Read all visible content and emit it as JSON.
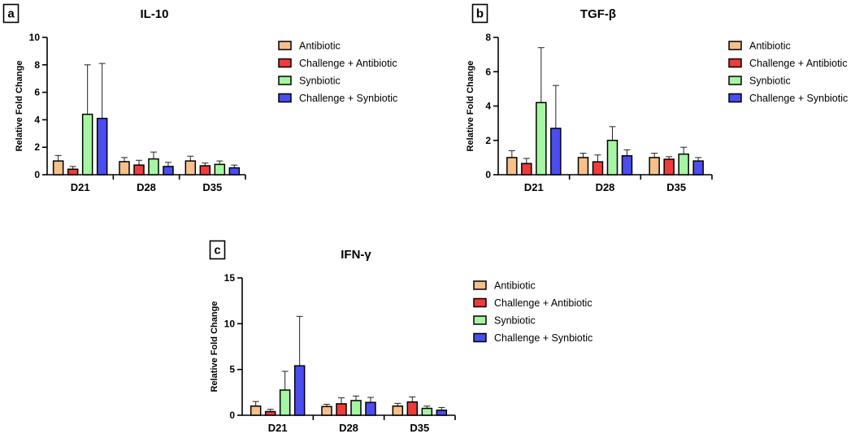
{
  "colors": {
    "Antibiotic": "#f5c08a",
    "Challenge + Antibiotic": "#ee3b3b",
    "Synbiotic": "#a6f5a2",
    "Challenge + Synbiotic": "#4b4df0"
  },
  "legend": [
    "Antibiotic",
    "Challenge + Antibiotic",
    "Synbiotic",
    "Challenge + Synbiotic"
  ],
  "chart_data": [
    {
      "type": "bar",
      "panel": "a",
      "title": "IL-10",
      "xlabel": "",
      "ylabel": "Relative Fold Change",
      "ylim": [
        0,
        10
      ],
      "yticks": [
        0,
        2,
        4,
        6,
        8,
        10
      ],
      "categories": [
        "D21",
        "D28",
        "D35"
      ],
      "series": [
        {
          "name": "Antibiotic",
          "values": [
            1.0,
            0.95,
            1.0
          ],
          "errors": [
            0.4,
            0.3,
            0.35
          ]
        },
        {
          "name": "Challenge + Antibiotic",
          "values": [
            0.4,
            0.7,
            0.65
          ],
          "errors": [
            0.2,
            0.35,
            0.2
          ]
        },
        {
          "name": "Synbiotic",
          "values": [
            4.4,
            1.15,
            0.75
          ],
          "errors": [
            3.6,
            0.5,
            0.25
          ]
        },
        {
          "name": "Challenge + Synbiotic",
          "values": [
            4.1,
            0.6,
            0.5
          ],
          "errors": [
            4.0,
            0.3,
            0.2
          ]
        }
      ]
    },
    {
      "type": "bar",
      "panel": "b",
      "title": "TGF-β",
      "xlabel": "",
      "ylabel": "Relative Fold Change",
      "ylim": [
        0,
        8
      ],
      "yticks": [
        0,
        2,
        4,
        6,
        8
      ],
      "categories": [
        "D21",
        "D28",
        "D35"
      ],
      "series": [
        {
          "name": "Antibiotic",
          "values": [
            1.0,
            1.0,
            1.0
          ],
          "errors": [
            0.4,
            0.25,
            0.25
          ]
        },
        {
          "name": "Challenge + Antibiotic",
          "values": [
            0.65,
            0.75,
            0.9
          ],
          "errors": [
            0.3,
            0.4,
            0.15
          ]
        },
        {
          "name": "Synbiotic",
          "values": [
            4.2,
            2.0,
            1.2
          ],
          "errors": [
            3.2,
            0.8,
            0.4
          ]
        },
        {
          "name": "Challenge + Synbiotic",
          "values": [
            2.7,
            1.1,
            0.8
          ],
          "errors": [
            2.5,
            0.35,
            0.2
          ]
        }
      ]
    },
    {
      "type": "bar",
      "panel": "c",
      "title": "IFN-γ",
      "xlabel": "",
      "ylabel": "Relative Fold Change",
      "ylim": [
        0,
        15
      ],
      "yticks": [
        0,
        5,
        10,
        15
      ],
      "categories": [
        "D21",
        "D28",
        "D35"
      ],
      "series": [
        {
          "name": "Antibiotic",
          "values": [
            1.0,
            0.95,
            1.0
          ],
          "errors": [
            0.5,
            0.25,
            0.3
          ]
        },
        {
          "name": "Challenge + Antibiotic",
          "values": [
            0.4,
            1.25,
            1.45
          ],
          "errors": [
            0.25,
            0.65,
            0.55
          ]
        },
        {
          "name": "Synbiotic",
          "values": [
            2.75,
            1.6,
            0.75
          ],
          "errors": [
            2.05,
            0.5,
            0.25
          ]
        },
        {
          "name": "Challenge + Synbiotic",
          "values": [
            5.4,
            1.4,
            0.55
          ],
          "errors": [
            5.4,
            0.55,
            0.3
          ]
        }
      ]
    }
  ]
}
